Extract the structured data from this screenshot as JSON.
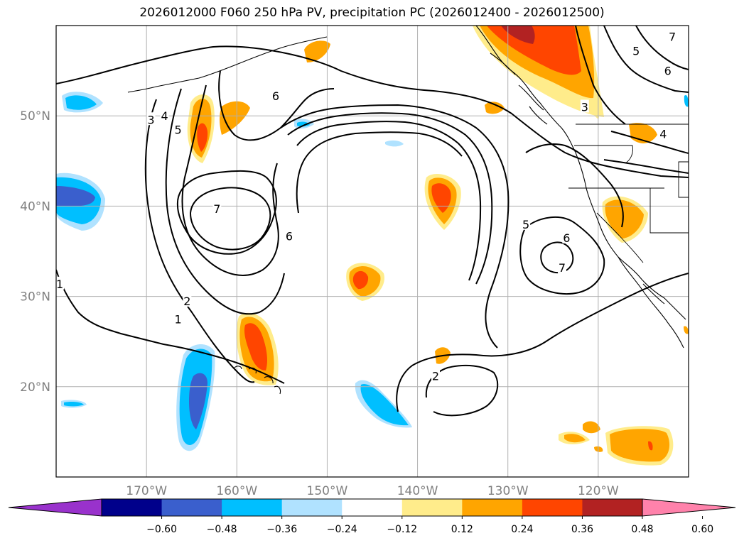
{
  "title": "2026012000 F060 250 hPa PV, precipitation PC (2026012400 - 2026012500)",
  "map": {
    "lon_range": [
      -180,
      -110
    ],
    "lat_range": [
      10,
      60
    ],
    "lat_ticks": [
      {
        "lat": 50,
        "label": "50°N"
      },
      {
        "lat": 40,
        "label": "40°N"
      },
      {
        "lat": 30,
        "label": "30°N"
      },
      {
        "lat": 20,
        "label": "20°N"
      }
    ],
    "lon_ticks": [
      {
        "lon": -170,
        "label": "170°W"
      },
      {
        "lon": -160,
        "label": "160°W"
      },
      {
        "lon": -150,
        "label": "150°W"
      },
      {
        "lon": -140,
        "label": "140°W"
      },
      {
        "lon": -130,
        "label": "130°W"
      },
      {
        "lon": -120,
        "label": "120°W"
      }
    ],
    "grid_color": "#b0b0b0"
  },
  "chart_data": {
    "type": "heatmap",
    "title": "2026012000 F060 250 hPa PV, precipitation PC (2026012400 - 2026012500)",
    "contour_field": "250 hPa PV",
    "contour_levels": [
      1,
      2,
      3,
      4,
      5,
      6,
      7
    ],
    "fill_field": "precipitation PC",
    "colorbar": {
      "ticks": [
        "−0.60",
        "−0.48",
        "−0.36",
        "−0.24",
        "−0.12",
        "0.12",
        "0.24",
        "0.36",
        "0.48",
        "0.60"
      ],
      "colors": [
        "#9932cc",
        "#00008b",
        "#3a5fcd",
        "#00bfff",
        "#b0e2ff",
        "#ffffff",
        "#ffec8b",
        "#ffa500",
        "#ff4500",
        "#b22222",
        "#ff82ab"
      ],
      "extend": "both"
    },
    "contour_labels": [
      {
        "text": "1",
        "lon": -166.5,
        "lat": 27.5
      },
      {
        "text": "2",
        "lon": -165.5,
        "lat": 29.5
      },
      {
        "text": "3",
        "lon": -169.5,
        "lat": 49.6
      },
      {
        "text": "4",
        "lon": -168.0,
        "lat": 50.0
      },
      {
        "text": "5",
        "lon": -166.5,
        "lat": 48.5
      },
      {
        "text": "6",
        "lon": -155.7,
        "lat": 52.2
      },
      {
        "text": "7",
        "lon": -162.2,
        "lat": 39.7
      },
      {
        "text": "6",
        "lon": -154.2,
        "lat": 36.7
      },
      {
        "text": "5",
        "lon": -128.0,
        "lat": 38.0
      },
      {
        "text": "6",
        "lon": -123.5,
        "lat": 36.5
      },
      {
        "text": "7",
        "lon": -124.0,
        "lat": 33.2
      },
      {
        "text": "2",
        "lon": -138.0,
        "lat": 21.2
      },
      {
        "text": "5",
        "lon": -115.8,
        "lat": 57.2
      },
      {
        "text": "6",
        "lon": -112.3,
        "lat": 55.0
      },
      {
        "text": "7",
        "lon": -111.8,
        "lat": 58.8
      },
      {
        "text": "3",
        "lon": -121.5,
        "lat": 51.0
      },
      {
        "text": "4",
        "lon": -112.8,
        "lat": 48.0
      },
      {
        "text": "1",
        "lon": -179.6,
        "lat": 31.4
      }
    ],
    "precip_features": [
      {
        "sign": "positive",
        "max_level": 0.48,
        "lon": -126.0,
        "lat": 57.0,
        "region": "Gulf of Alaska coast"
      },
      {
        "sign": "positive",
        "max_level": 0.36,
        "lon": -137.0,
        "lat": 40.0,
        "region": "central Pacific"
      },
      {
        "sign": "positive",
        "max_level": 0.36,
        "lon": -146.0,
        "lat": 32.0,
        "region": "central Pacific"
      },
      {
        "sign": "positive",
        "max_level": 0.36,
        "lon": -159.7,
        "lat": 24.5,
        "region": "north of Hawaii"
      },
      {
        "sign": "positive",
        "max_level": 0.36,
        "lon": -164.0,
        "lat": 47.5,
        "region": "Aleutian south"
      },
      {
        "sign": "positive",
        "max_level": 0.24,
        "lon": -117.0,
        "lat": 39.5,
        "region": "California interior"
      },
      {
        "sign": "positive",
        "max_level": 0.36,
        "lon": -113.5,
        "lat": 13.5,
        "region": "Mexico Pacific coast"
      },
      {
        "sign": "negative",
        "max_level": -0.48,
        "lon": -165.0,
        "lat": 20.0,
        "region": "west of Hawaii"
      },
      {
        "sign": "negative",
        "max_level": -0.36,
        "lon": -178.0,
        "lat": 41.0,
        "region": "west edge"
      },
      {
        "sign": "negative",
        "max_level": -0.36,
        "lon": -144.0,
        "lat": 17.0,
        "region": "east of Hawaii"
      }
    ]
  }
}
